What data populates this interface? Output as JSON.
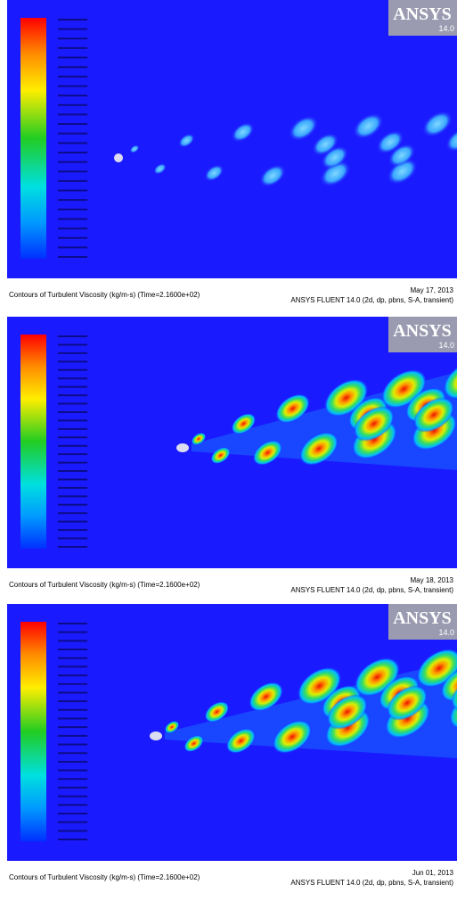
{
  "panels": [
    {
      "logo_name": "ANSYS",
      "logo_version": "14.0",
      "caption": "Contours of Turbulent Viscosity (kg/m-s)  (Time=2.1600e+02)",
      "date": "May 17, 2013",
      "solver": "ANSYS FLUENT 14.0 (2d, dp, pbns, S-A, transient)"
    },
    {
      "logo_name": "ANSYS",
      "logo_version": "14.0",
      "caption": "Contours of Turbulent Viscosity (kg/m-s)  (Time=2.1600e+02)",
      "date": "May 18, 2013",
      "solver": "ANSYS FLUENT 14.0 (2d, dp, pbns, S-A, transient)"
    },
    {
      "logo_name": "ANSYS",
      "logo_version": "14.0",
      "caption": "Contours of Turbulent Viscosity (kg/m-s)  (Time=2.1600e+02)",
      "date": "Jun 01, 2013",
      "solver": "ANSYS FLUENT 14.0 (2d, dp, pbns, S-A, transient)"
    }
  ]
}
